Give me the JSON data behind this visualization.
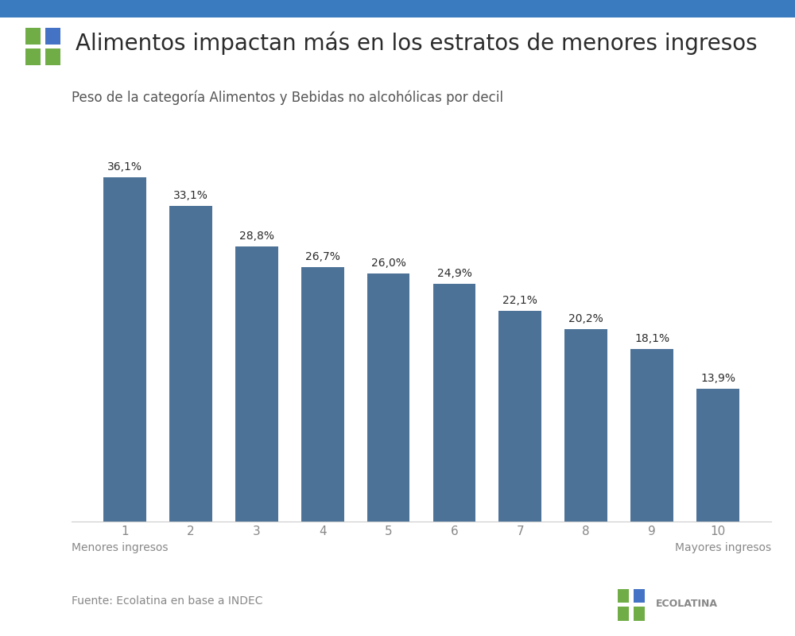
{
  "title": "Alimentos impactan más en los estratos de menores ingresos",
  "subtitle": "Peso de la categoría Alimentos y Bebidas no alcohólicas por decil",
  "categories": [
    "1",
    "2",
    "3",
    "4",
    "5",
    "6",
    "7",
    "8",
    "9",
    "10"
  ],
  "values": [
    36.1,
    33.1,
    28.8,
    26.7,
    26.0,
    24.9,
    22.1,
    20.2,
    18.1,
    13.9
  ],
  "labels": [
    "36,1%",
    "33,1%",
    "28,8%",
    "26,7%",
    "26,0%",
    "24,9%",
    "22,1%",
    "20,2%",
    "18,1%",
    "13,9%"
  ],
  "bar_color": "#4d7298",
  "background_color": "#ffffff",
  "title_color": "#2b2b2b",
  "subtitle_color": "#555555",
  "label_color": "#2b2b2b",
  "tick_color": "#888888",
  "source_text": "Fuente: Ecolatina en base a INDEC",
  "footer_color": "#888888",
  "left_footer": "Menores ingresos",
  "right_footer": "Mayores ingresos",
  "top_bar_color": "#3a7abf",
  "ylim": [
    0,
    40
  ],
  "title_fontsize": 20,
  "subtitle_fontsize": 12,
  "label_fontsize": 10,
  "tick_fontsize": 11,
  "footer_fontsize": 10,
  "ecolatina_color": "#888888",
  "logo_blue": "#4472c4",
  "logo_green": "#70ad47"
}
